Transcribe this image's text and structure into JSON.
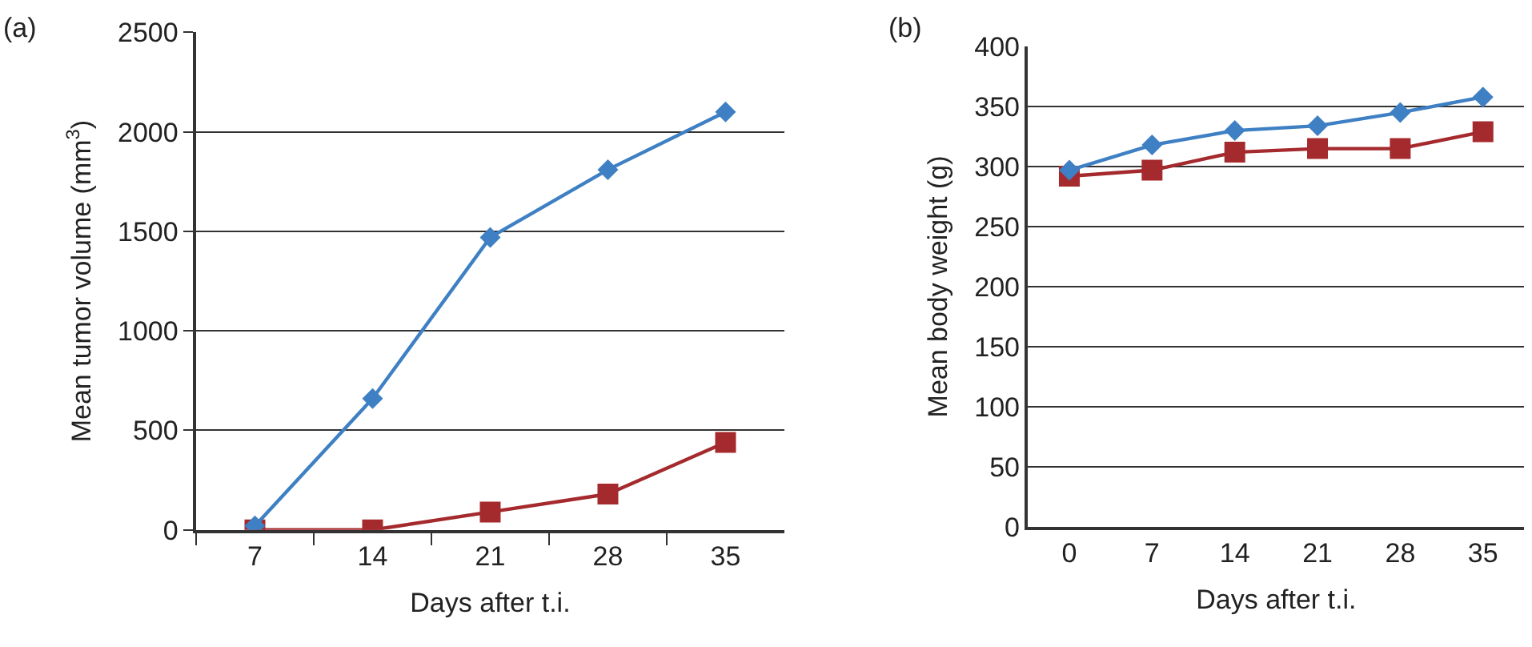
{
  "chart_data": [
    {
      "type": "line",
      "title": "(a)",
      "xlabel": "Days after t.i.",
      "ylabel": "Mean tumor volume (mm$^{3}$)",
      "categories": [
        "7",
        "14",
        "21",
        "28",
        "35"
      ],
      "ylim": [
        0,
        2500
      ],
      "yticks": [
        0,
        500,
        1000,
        1500,
        2000,
        2500
      ],
      "grid": "y",
      "line_style": "solid",
      "series": [
        {
          "color": "#3f80c4",
          "marker": "diamond",
          "values": [
            20,
            660,
            1470,
            1810,
            2100
          ]
        },
        {
          "color": "#a52a2d",
          "marker": "square",
          "values": [
            0,
            0,
            90,
            180,
            440
          ]
        }
      ]
    },
    {
      "type": "line",
      "title": "(b)",
      "xlabel": "Days after t.i.",
      "ylabel": "Mean body weight (g)",
      "categories": [
        "0",
        "7",
        "14",
        "21",
        "28",
        "35"
      ],
      "ylim": [
        0,
        400
      ],
      "yticks": [
        0,
        50,
        100,
        150,
        200,
        250,
        300,
        350,
        400
      ],
      "grid": "y",
      "line_style": "solid",
      "series": [
        {
          "color": "#3f80c4",
          "marker": "diamond",
          "values": [
            297,
            318,
            330,
            334,
            345,
            358
          ]
        },
        {
          "color": "#a52a2d",
          "marker": "square",
          "values": [
            292,
            297,
            312,
            315,
            315,
            329
          ]
        }
      ]
    }
  ]
}
